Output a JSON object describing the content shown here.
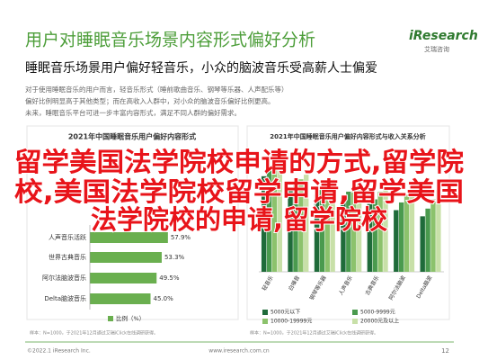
{
  "header": {
    "title": "用户对睡眠音乐场景内容形式偏好分析",
    "logo": "iResearch",
    "logo_sub": "艾瑞咨询",
    "subtitle": "睡眠音乐场景用户偏好轻音乐，小众的脑波音乐受高薪人士偏爱",
    "paragraph": [
      "对于使用睡眠音乐的用户而言，轻音乐形式（睡前歌曲音乐、钢琴等乐器、人声配乐等）",
      "偏好比例明显高于其他类型；而在高收入人群中，对小众的脑波音乐偏好比例更高。",
      "未来，睡眠音乐平台可进一步丰富内容形式，满足不同人群的偏好需求。"
    ]
  },
  "overlay": {
    "lines": [
      "留学美国法学院校申请的方式,留学院",
      "校,美国法学院校留学申请,留学美国",
      "法学院校的申请,留学院校"
    ]
  },
  "chart_data": [
    {
      "type": "hbar",
      "title": "2021年中国睡眠音乐用户偏好内容形式",
      "categories": [
        "人声音乐活跃",
        "世界古典音乐",
        "阿尔法脑波音乐",
        "Delta脑波音乐"
      ],
      "values": [
        57.9,
        53.3,
        49.5,
        45.0
      ],
      "value_labels": [
        "57.9%",
        "53.3%",
        "49.5%",
        "45.0%"
      ],
      "xlim": [
        0,
        100
      ],
      "color": "#6aaf4f",
      "legend": "比例（%）",
      "source": "样本：N=1000，于2021年12月通过艾瑞iClick在线调研获得。"
    },
    {
      "type": "grouped-bar",
      "title": "2021年中国睡眠音乐用户偏好内容形式与收入关系分析",
      "categories": [
        "轻音乐",
        "白噪音",
        "钢琴等乐器",
        "人声音乐",
        "古典音乐",
        "阿尔法脑波",
        "Delta脑波"
      ],
      "ylim": [
        0,
        80
      ],
      "series": [
        {
          "name": "5000元以下",
          "color": "#1f6b3a",
          "values": [
            62,
            55,
            50,
            48,
            44,
            40,
            36
          ]
        },
        {
          "name": "5000-9999元",
          "color": "#4a9a4e",
          "values": [
            66,
            58,
            54,
            52,
            47,
            45,
            41
          ]
        },
        {
          "name": "10000-19999元",
          "color": "#8cc26c",
          "values": [
            70,
            60,
            57,
            55,
            52,
            50,
            47
          ]
        },
        {
          "name": "20000元及以上",
          "color": "#c8e0a8",
          "values": [
            72,
            63,
            60,
            58,
            56,
            57,
            53
          ]
        }
      ],
      "source": "样本：N=1000，于2021年12月通过艾瑞iClick在线调研获得。"
    }
  ],
  "footer": {
    "copyright": "©2022.1 iResearch Inc.",
    "url": "www.iresearch.com.cn",
    "page": "12"
  }
}
